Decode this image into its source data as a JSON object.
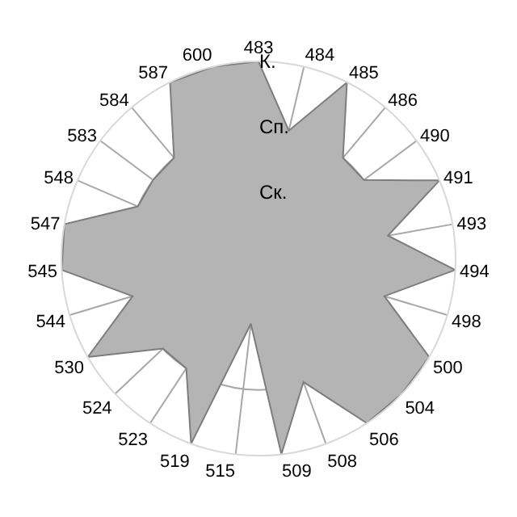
{
  "chart_data": {
    "type": "radar",
    "categories": [
      "483",
      "484",
      "485",
      "486",
      "490",
      "491",
      "493",
      "494",
      "498",
      "500",
      "504",
      "506",
      "508",
      "509",
      "515",
      "519",
      "523",
      "524",
      "530",
      "544",
      "545",
      "547",
      "548",
      "583",
      "584",
      "587",
      "600"
    ],
    "series": [
      {
        "color": "#b4b4b4",
        "values": [
          3,
          2,
          3,
          2,
          2,
          3,
          2,
          3,
          2,
          3,
          3,
          3,
          2,
          3,
          1,
          3,
          2,
          2,
          3,
          2,
          3,
          3,
          2,
          2,
          2,
          3,
          3
        ]
      }
    ],
    "ylim": [
      0,
      3
    ],
    "yticks": [
      {
        "value": 1,
        "label": "Ск."
      },
      {
        "value": 2,
        "label": "Сп."
      },
      {
        "value": 3,
        "label": "К."
      }
    ],
    "grid": true,
    "marker": "none"
  }
}
